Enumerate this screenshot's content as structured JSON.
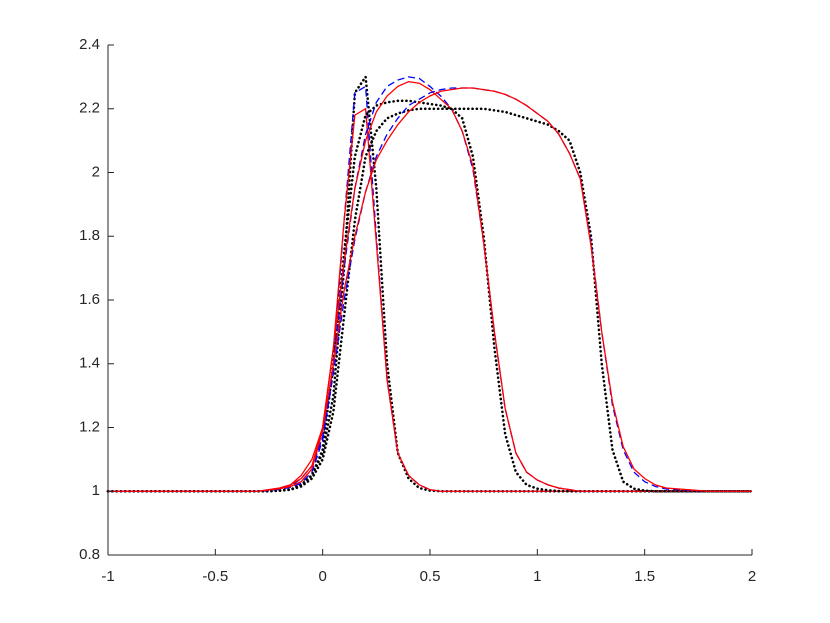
{
  "chart_data": {
    "type": "line",
    "x": [
      -1,
      -0.6,
      -0.3,
      -0.25,
      -0.2,
      -0.15,
      -0.1,
      -0.05,
      0,
      0.05,
      0.1,
      0.15,
      0.2,
      0.25,
      0.3,
      0.35,
      0.4,
      0.45,
      0.5,
      0.55,
      0.6,
      0.65,
      0.7,
      0.75,
      0.8,
      0.85,
      0.9,
      0.95,
      1,
      1.05,
      1.1,
      1.15,
      1.2,
      1.25,
      1.3,
      1.35,
      1.4,
      1.45,
      1.5,
      1.55,
      1.6,
      1.8,
      2
    ],
    "series": [
      {
        "color": "#000000",
        "style": "dotted",
        "values": [
          1,
          1,
          1,
          1,
          1.002,
          1.005,
          1.02,
          1.05,
          1.12,
          1.3,
          1.7,
          2.25,
          2.3,
          1.95,
          1.4,
          1.12,
          1.04,
          1.01,
          1.002,
          1,
          1,
          1,
          1,
          1,
          1,
          1,
          1,
          1,
          1,
          1,
          1,
          1,
          1,
          1,
          1,
          1,
          1,
          1,
          1,
          1,
          1,
          1,
          1
        ]
      },
      {
        "color": "#0000ff",
        "style": "dashed",
        "values": [
          1,
          1,
          1,
          1.004,
          1.008,
          1.015,
          1.04,
          1.08,
          1.17,
          1.4,
          1.85,
          2.25,
          2.27,
          1.8,
          1.35,
          1.12,
          1.05,
          1.02,
          1.005,
          1,
          1,
          1,
          1,
          1,
          1,
          1,
          1,
          1,
          1,
          1,
          1,
          1,
          1,
          1,
          1,
          1,
          1,
          1,
          1,
          1,
          1,
          1,
          1
        ]
      },
      {
        "color": "#ff0000",
        "style": "solid",
        "values": [
          1,
          1,
          1,
          1.005,
          1.01,
          1.02,
          1.05,
          1.1,
          1.2,
          1.45,
          1.85,
          2.18,
          2.2,
          1.78,
          1.35,
          1.12,
          1.05,
          1.02,
          1.005,
          1,
          1,
          1,
          1,
          1,
          1,
          1,
          1,
          1,
          1,
          1,
          1,
          1,
          1,
          1,
          1,
          1,
          1,
          1,
          1,
          1,
          1,
          1,
          1
        ]
      },
      {
        "color": "#000000",
        "style": "dotted",
        "values": [
          1,
          1,
          1,
          1,
          1.002,
          1.005,
          1.02,
          1.05,
          1.13,
          1.4,
          1.75,
          2.05,
          2.18,
          2.21,
          2.22,
          2.225,
          2.225,
          2.22,
          2.215,
          2.21,
          2.2,
          2.17,
          2.05,
          1.8,
          1.45,
          1.18,
          1.06,
          1.02,
          1.008,
          1.003,
          1.001,
          1,
          1,
          1,
          1,
          1,
          1,
          1,
          1,
          1,
          1,
          1,
          1
        ]
      },
      {
        "color": "#0000ff",
        "style": "dashed",
        "values": [
          1,
          1,
          1,
          1.003,
          1.007,
          1.015,
          1.03,
          1.07,
          1.17,
          1.4,
          1.7,
          1.95,
          2.12,
          2.22,
          2.27,
          2.29,
          2.3,
          2.295,
          2.27,
          2.24,
          2.2,
          2.13,
          2.01,
          1.78,
          1.5,
          1.26,
          1.12,
          1.06,
          1.035,
          1.02,
          1.01,
          1.005,
          1,
          1,
          1,
          1,
          1,
          1,
          1,
          1,
          1,
          1,
          1
        ]
      },
      {
        "color": "#ff0000",
        "style": "solid",
        "values": [
          1,
          1,
          1,
          1.005,
          1.01,
          1.02,
          1.04,
          1.08,
          1.2,
          1.45,
          1.72,
          1.95,
          2.1,
          2.19,
          2.24,
          2.27,
          2.285,
          2.28,
          2.26,
          2.23,
          2.2,
          2.13,
          2.02,
          1.78,
          1.5,
          1.26,
          1.12,
          1.06,
          1.035,
          1.02,
          1.01,
          1.005,
          1,
          1,
          1,
          1,
          1,
          1,
          1,
          1,
          1,
          1,
          1
        ]
      },
      {
        "color": "#000000",
        "style": "dotted",
        "values": [
          1,
          1,
          1,
          1,
          1.002,
          1.005,
          1.015,
          1.04,
          1.1,
          1.25,
          1.55,
          1.85,
          2.05,
          2.13,
          2.17,
          2.185,
          2.195,
          2.2,
          2.2,
          2.2,
          2.2,
          2.2,
          2.2,
          2.2,
          2.195,
          2.19,
          2.18,
          2.17,
          2.16,
          2.15,
          2.13,
          2.1,
          2.0,
          1.8,
          1.4,
          1.13,
          1.03,
          1.008,
          1.002,
          1,
          1,
          1,
          1
        ]
      },
      {
        "color": "#0000ff",
        "style": "dashed",
        "values": [
          1,
          1,
          1,
          1.003,
          1.006,
          1.012,
          1.025,
          1.06,
          1.16,
          1.37,
          1.6,
          1.79,
          1.94,
          2.05,
          2.12,
          2.17,
          2.21,
          2.23,
          2.25,
          2.26,
          2.265,
          2.265,
          2.265,
          2.26,
          2.255,
          2.245,
          2.23,
          2.21,
          2.185,
          2.16,
          2.12,
          2.06,
          1.98,
          1.78,
          1.5,
          1.27,
          1.13,
          1.06,
          1.03,
          1.015,
          1.007,
          1,
          1
        ]
      },
      {
        "color": "#ff0000",
        "style": "solid",
        "values": [
          1,
          1,
          1,
          1.004,
          1.008,
          1.015,
          1.03,
          1.07,
          1.19,
          1.4,
          1.63,
          1.8,
          1.94,
          2.04,
          2.1,
          2.15,
          2.19,
          2.22,
          2.24,
          2.255,
          2.26,
          2.265,
          2.265,
          2.26,
          2.255,
          2.245,
          2.23,
          2.21,
          2.185,
          2.16,
          2.12,
          2.06,
          1.98,
          1.77,
          1.5,
          1.28,
          1.14,
          1.07,
          1.04,
          1.02,
          1.01,
          1,
          1
        ]
      }
    ],
    "xlim": [
      -1,
      2
    ],
    "xticks": [
      -1,
      -0.5,
      0,
      0.5,
      1,
      1.5,
      2
    ],
    "ylim": [
      0.8,
      2.4
    ],
    "yticks": [
      0.8,
      1,
      1.2,
      1.4,
      1.6,
      1.8,
      2,
      2.2,
      2.4
    ]
  }
}
